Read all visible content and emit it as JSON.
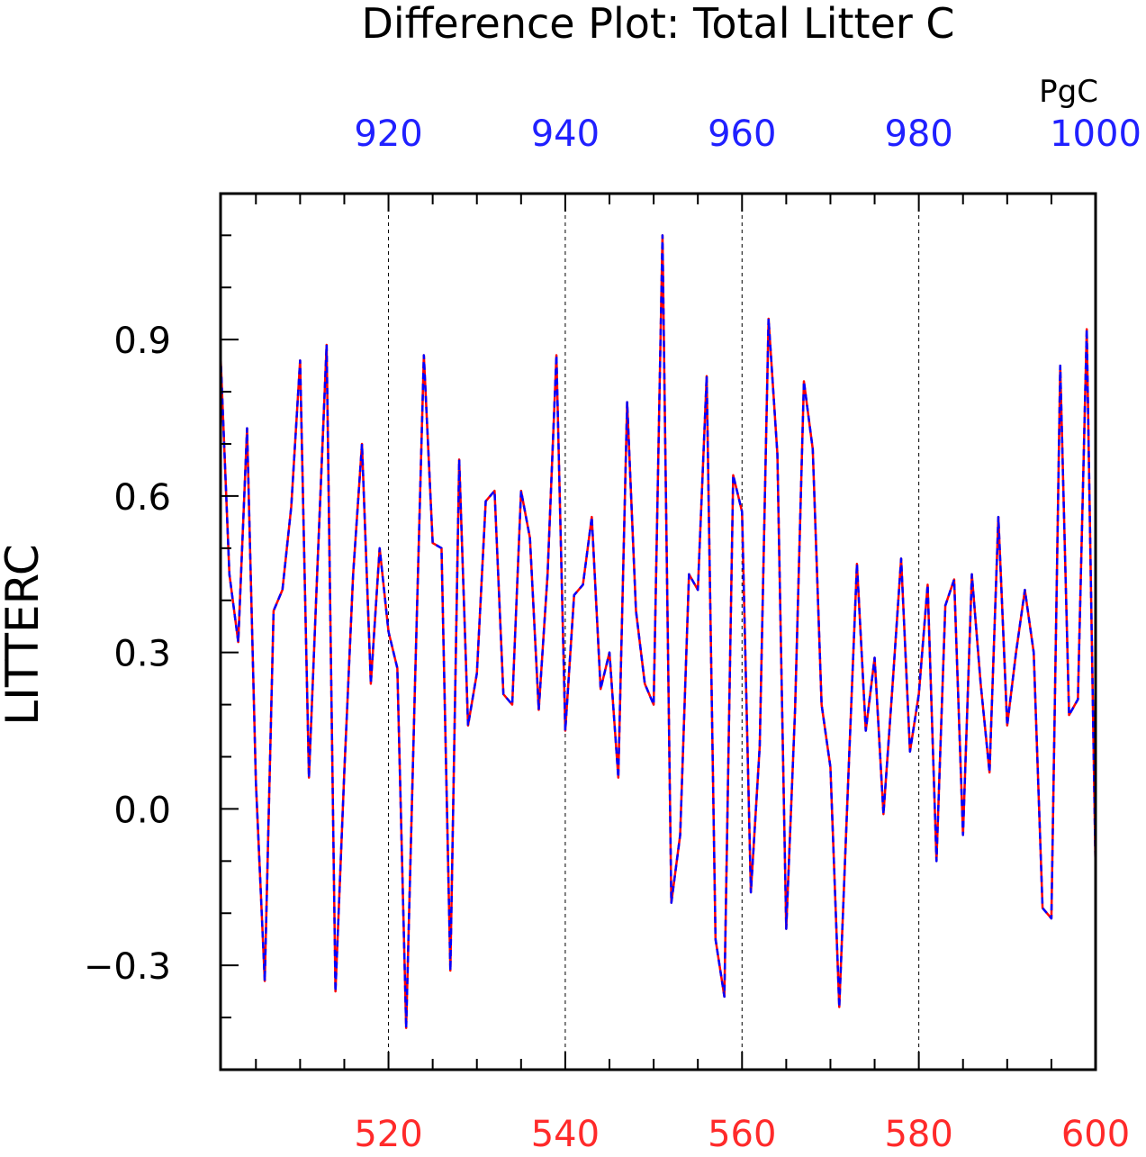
{
  "chart_data": {
    "type": "line",
    "title": "Difference Plot: Total Litter C",
    "units": "PgC",
    "ylabel": "LITTERC",
    "xlabel": "",
    "colors": {
      "series_a": "#ff0000",
      "series_b": "#0000ff",
      "axis": "#000000",
      "gridline": "#000000"
    },
    "bottom_axis": {
      "range": [
        501,
        600
      ],
      "ticks": [
        520,
        540,
        560,
        580,
        600
      ],
      "tick_color": "#ff2a2a"
    },
    "top_axis": {
      "range": [
        901,
        1000
      ],
      "ticks": [
        920,
        940,
        960,
        980,
        1000
      ],
      "tick_color": "#2020ff"
    },
    "y_axis": {
      "range": [
        -0.5,
        1.18
      ],
      "ticks": [
        -0.3,
        0.0,
        0.3,
        0.6,
        0.9
      ],
      "tick_labels": [
        "−0.3",
        "0.0",
        "0.3",
        "0.6",
        "0.9"
      ]
    },
    "grid": "vertical dashed at labeled x ticks",
    "x": [
      501,
      502,
      503,
      504,
      505,
      506,
      507,
      508,
      509,
      510,
      511,
      512,
      513,
      514,
      515,
      516,
      517,
      518,
      519,
      520,
      521,
      522,
      523,
      524,
      525,
      526,
      527,
      528,
      529,
      530,
      531,
      532,
      533,
      534,
      535,
      536,
      537,
      538,
      539,
      540,
      541,
      542,
      543,
      544,
      545,
      546,
      547,
      548,
      549,
      550,
      551,
      552,
      553,
      554,
      555,
      556,
      557,
      558,
      559,
      560,
      561,
      562,
      563,
      564,
      565,
      566,
      567,
      568,
      569,
      570,
      571,
      572,
      573,
      574,
      575,
      576,
      577,
      578,
      579,
      580,
      581,
      582,
      583,
      584,
      585,
      586,
      587,
      588,
      589,
      590,
      591,
      592,
      593,
      594,
      595,
      596,
      597,
      598,
      599,
      600
    ],
    "series": [
      {
        "values": [
          0.87,
          0.45,
          0.32,
          0.73,
          0.05,
          -0.33,
          0.38,
          0.42,
          0.58,
          0.86,
          0.06,
          0.48,
          0.89,
          -0.35,
          0.07,
          0.45,
          0.7,
          0.24,
          0.5,
          0.34,
          0.27,
          -0.42,
          0.24,
          0.87,
          0.51,
          0.5,
          -0.31,
          0.67,
          0.16,
          0.26,
          0.59,
          0.61,
          0.22,
          0.2,
          0.61,
          0.52,
          0.19,
          0.45,
          0.87,
          0.15,
          0.41,
          0.43,
          0.56,
          0.23,
          0.3,
          0.06,
          0.78,
          0.38,
          0.24,
          0.2,
          1.1,
          -0.18,
          -0.05,
          0.45,
          0.42,
          0.83,
          -0.25,
          -0.36,
          0.64,
          0.57,
          -0.16,
          0.12,
          0.94,
          0.68,
          -0.23,
          0.19,
          0.82,
          0.69,
          0.2,
          0.08,
          -0.38,
          0.05,
          0.47,
          0.15,
          0.29,
          -0.01,
          0.23,
          0.48,
          0.11,
          0.22,
          0.43,
          -0.1,
          0.39,
          0.44,
          -0.05,
          0.45,
          0.24,
          0.07,
          0.56,
          0.16,
          0.3,
          0.42,
          0.3,
          -0.19,
          -0.21,
          0.85,
          0.18,
          0.21,
          0.92,
          -0.12
        ]
      },
      {
        "values": [
          0.87,
          0.45,
          0.32,
          0.73,
          0.05,
          -0.33,
          0.38,
          0.42,
          0.58,
          0.86,
          0.06,
          0.48,
          0.89,
          -0.35,
          0.07,
          0.45,
          0.7,
          0.24,
          0.5,
          0.34,
          0.27,
          -0.42,
          0.24,
          0.87,
          0.51,
          0.5,
          -0.31,
          0.67,
          0.16,
          0.26,
          0.59,
          0.61,
          0.22,
          0.2,
          0.61,
          0.52,
          0.19,
          0.45,
          0.87,
          0.15,
          0.41,
          0.43,
          0.56,
          0.23,
          0.3,
          0.06,
          0.78,
          0.38,
          0.24,
          0.2,
          1.1,
          -0.18,
          -0.05,
          0.45,
          0.42,
          0.83,
          -0.25,
          -0.36,
          0.64,
          0.57,
          -0.16,
          0.12,
          0.94,
          0.68,
          -0.23,
          0.19,
          0.82,
          0.69,
          0.2,
          0.08,
          -0.38,
          0.05,
          0.47,
          0.15,
          0.29,
          -0.01,
          0.23,
          0.48,
          0.11,
          0.22,
          0.43,
          -0.1,
          0.39,
          0.44,
          -0.05,
          0.45,
          0.24,
          0.07,
          0.56,
          0.16,
          0.3,
          0.42,
          0.3,
          -0.19,
          -0.21,
          0.85,
          0.18,
          0.21,
          0.92,
          -0.12
        ]
      }
    ]
  }
}
